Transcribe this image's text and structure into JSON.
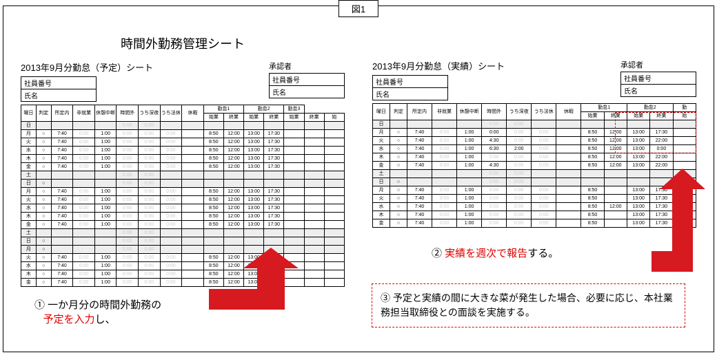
{
  "figure_label": "図1",
  "left": {
    "main_title": "時間外勤務管理シート",
    "sheet_label": "2013年9月分勤怠（予定）シート",
    "approver_label": "承認者",
    "info1": "社員番号",
    "info2": "氏名",
    "headers_top": [
      "曜日",
      "判定",
      "所定内",
      "非就業",
      "休憩中断",
      "時間外",
      "うち深夜",
      "うち法休",
      "休暇"
    ],
    "headers_work": [
      [
        "勤怠1",
        "勤怠2",
        "勤怠3"
      ],
      [
        "始業",
        "終業",
        "始業",
        "終業",
        "始業",
        "終業",
        "始"
      ]
    ],
    "rows": [
      {
        "day": "日",
        "mark": "",
        "shade": true
      },
      {
        "day": "月",
        "mark": "○",
        "time": "7:40",
        "ph": "0:00",
        "br": "1:00",
        "w": [
          "8:50",
          "12:00",
          "13:00",
          "17:30"
        ]
      },
      {
        "day": "火",
        "mark": "○",
        "time": "7:40",
        "ph": "0:00",
        "br": "1:00",
        "w": [
          "8:50",
          "12:00",
          "13:00",
          "17:30"
        ]
      },
      {
        "day": "水",
        "mark": "○",
        "time": "7:40",
        "ph": "0:00",
        "br": "1:00",
        "w": [
          "8:50",
          "12:00",
          "13:00",
          "17:30"
        ]
      },
      {
        "day": "木",
        "mark": "○",
        "time": "7:40",
        "ph": "0:00",
        "br": "1:00",
        "w": [
          "8:50",
          "12:00",
          "13:00",
          "17:30"
        ]
      },
      {
        "day": "金",
        "mark": "○",
        "time": "7:40",
        "ph": "0:00",
        "br": "1:00",
        "w": [
          "8:50",
          "12:00",
          "13:00",
          "17:30"
        ]
      },
      {
        "day": "土",
        "mark": "",
        "shade": true
      },
      {
        "day": "日",
        "mark": "○",
        "shade": true
      },
      {
        "day": "月",
        "mark": "○",
        "time": "7:40",
        "ph": "0:00",
        "br": "1:00",
        "w": [
          "8:50",
          "12:00",
          "13:00",
          "17:30"
        ]
      },
      {
        "day": "火",
        "mark": "○",
        "time": "7:40",
        "ph": "0:00",
        "br": "1:00",
        "w": [
          "8:50",
          "12:00",
          "13:00",
          "17:30"
        ]
      },
      {
        "day": "水",
        "mark": "○",
        "time": "7:40",
        "ph": "0:00",
        "br": "1:00",
        "w": [
          "8:50",
          "12:00",
          "13:00",
          "17:30"
        ]
      },
      {
        "day": "木",
        "mark": "○",
        "time": "7:40",
        "ph": "0:00",
        "br": "1:00",
        "w": [
          "8:50",
          "12:00",
          "13:00",
          "17:30"
        ]
      },
      {
        "day": "金",
        "mark": "○",
        "time": "7:40",
        "ph": "0:00",
        "br": "1:00",
        "w": [
          "8:50",
          "12:00",
          "13:00",
          "17:30"
        ]
      },
      {
        "day": "土",
        "mark": "",
        "shade": true
      },
      {
        "day": "日",
        "mark": "○",
        "shade": true
      },
      {
        "day": "月",
        "mark": "○",
        "shade": true
      },
      {
        "day": "火",
        "mark": "○",
        "time": "7:40",
        "ph": "0:00",
        "br": "1:00",
        "w": [
          "8:50",
          "12:00",
          "13:00",
          "17:30"
        ]
      },
      {
        "day": "水",
        "mark": "○",
        "time": "7:40",
        "ph": "0:00",
        "br": "1:00",
        "w": [
          "8:50",
          "12:00",
          "13:00",
          "17:30"
        ]
      },
      {
        "day": "木",
        "mark": "○",
        "time": "7:40",
        "ph": "0:00",
        "br": "1:00",
        "w": [
          "8:50",
          "12:00",
          "13:00",
          "17:30"
        ]
      },
      {
        "day": "金",
        "mark": "○",
        "time": "7:40",
        "ph": "0:00",
        "br": "1:00",
        "w": [
          "8:50",
          "12:00",
          "13:00",
          "17:30"
        ]
      }
    ]
  },
  "right": {
    "sheet_label": "2013年9月分勤怠（実績）シート",
    "approver_label": "承認者",
    "info1": "社員番号",
    "info2": "氏名",
    "headers_top": [
      "曜日",
      "判定",
      "所定内",
      "非就業",
      "休憩中断",
      "時間外",
      "うち深夜",
      "うち法休",
      "休暇"
    ],
    "headers_work": [
      [
        "勤怠1",
        "勤怠2",
        "勤"
      ],
      [
        "始業",
        "終業",
        "始業",
        "終業",
        "始"
      ]
    ],
    "rows": [
      {
        "day": "日",
        "mark": "",
        "shade": true
      },
      {
        "day": "月",
        "mark": "○",
        "time": "7:40",
        "ph": "0:00",
        "br": "1:00",
        "ot": "0:00",
        "w": [
          "8:50",
          "12:00",
          "13:00",
          "17:30"
        ],
        "hl": true
      },
      {
        "day": "火",
        "mark": "○",
        "time": "7:40",
        "ph": "0:00",
        "br": "1:00",
        "ot": "4:30",
        "w": [
          "8:50",
          "12:00",
          "13:00",
          "22:00"
        ],
        "hl": true
      },
      {
        "day": "水",
        "mark": "○",
        "time": "7:40",
        "ph": "0:00",
        "br": "1:00",
        "ot": "6:30",
        "dn": "2:00",
        "w": [
          "8:50",
          "12:00",
          "13:00",
          "0:00"
        ],
        "hl": true
      },
      {
        "day": "木",
        "mark": "○",
        "time": "7:40",
        "ph": "0:00",
        "br": "1:00",
        "w": [
          "8:50",
          "12:00",
          "13:00",
          "22:00"
        ],
        "hl": true
      },
      {
        "day": "金",
        "mark": "○",
        "time": "7:40",
        "ph": "0:00",
        "br": "1:00",
        "ot": "4:30",
        "w": [
          "8:50",
          "12:00",
          "13:00",
          "22:00"
        ],
        "hl": true
      },
      {
        "day": "土",
        "mark": "",
        "shade": true
      },
      {
        "day": "日",
        "mark": "○",
        "shade": true
      },
      {
        "day": "月",
        "mark": "○",
        "time": "7:40",
        "ph": "0:00",
        "br": "1:00",
        "w": [
          "8:50",
          "",
          "13:00",
          "17:30"
        ]
      },
      {
        "day": "火",
        "mark": "○",
        "time": "7:40",
        "ph": "0:00",
        "br": "1:00",
        "w": [
          "8:50",
          "",
          "13:00",
          "17:30"
        ]
      },
      {
        "day": "水",
        "mark": "○",
        "time": "7:40",
        "ph": "0:00",
        "br": "1:00",
        "w": [
          "8:50",
          "12:00",
          "13:00",
          "17:30"
        ]
      },
      {
        "day": "木",
        "mark": "○",
        "time": "7:40",
        "ph": "0:00",
        "br": "1:00",
        "w": [
          "8:50",
          "",
          "13:00",
          "17:30"
        ]
      },
      {
        "day": "金",
        "mark": "○",
        "time": "7:40",
        "ph": "0:00",
        "br": "1:00",
        "w": [
          "8:50",
          "",
          "13:00",
          "17:30"
        ]
      }
    ]
  },
  "callout1_a": "① 一か月分の時間外勤務の",
  "callout1_b": "予定を入力",
  "callout1_c": "し、",
  "callout2_num": "② ",
  "callout2_red": "実績を週次で報告",
  "callout2_c": "する。",
  "callout3_a": "③ 予定と実績の間に大きな菜が発生した場合、必要に応じ、本社業務担当取締役との面談を実施する。",
  "arrow_color": "#d71920"
}
